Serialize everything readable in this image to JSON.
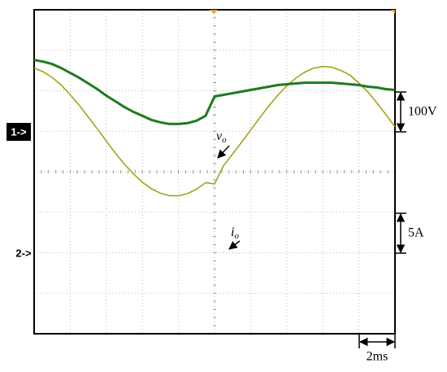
{
  "chart_data": {
    "type": "line",
    "x": [
      0,
      0.5,
      1,
      1.5,
      2,
      2.5,
      3,
      3.5,
      4,
      4.5,
      5,
      5.5,
      6,
      6.5,
      7,
      7.5,
      8,
      8.5,
      9,
      9.5,
      10,
      10.5,
      11,
      11.5,
      12,
      12.5,
      13,
      13.5,
      14,
      14.5,
      15,
      15.5,
      16,
      16.5,
      17,
      17.5,
      18,
      18.5,
      19,
      19.5,
      20
    ],
    "xlim": [
      0,
      20
    ],
    "ylim": [
      -500,
      300
    ],
    "y2lim": [
      -30,
      10
    ],
    "grid": true,
    "series": [
      {
        "name": "1->",
        "color": "#a3a31a",
        "values": [
          156,
          147,
          133,
          114,
          90,
          64,
          35,
          6,
          -24,
          -54,
          -81,
          -105,
          -126,
          -142,
          -153,
          -159,
          -159,
          -154,
          -143,
          -127,
          -130,
          -85,
          -56,
          -27,
          3,
          33,
          62,
          89,
          112,
          131,
          146,
          156,
          160,
          158,
          150,
          139,
          119,
          97,
          70,
          41,
          11
        ]
      },
      {
        "name": "2->",
        "color": "#1f7a1f",
        "axis": "y2",
        "values": [
          3.8,
          3.6,
          3.3,
          2.8,
          2.2,
          1.6,
          0.9,
          0.2,
          -0.6,
          -1.3,
          -2.0,
          -2.6,
          -3.1,
          -3.6,
          -3.9,
          -4.1,
          -4.1,
          -4.0,
          -3.7,
          -3.1,
          -0.7,
          -0.5,
          -0.3,
          -0.1,
          0.1,
          0.3,
          0.5,
          0.7,
          0.8,
          0.9,
          1.0,
          1.0,
          1.0,
          1.0,
          0.9,
          0.8,
          0.7,
          0.5,
          0.4,
          0.2,
          0.1
        ]
      }
    ],
    "annotations": [
      {
        "text": "v",
        "subscript": "o"
      },
      {
        "text": "i",
        "subscript": "o"
      },
      {
        "text": "100V"
      },
      {
        "text": "5A"
      },
      {
        "text": "2ms"
      }
    ]
  }
}
